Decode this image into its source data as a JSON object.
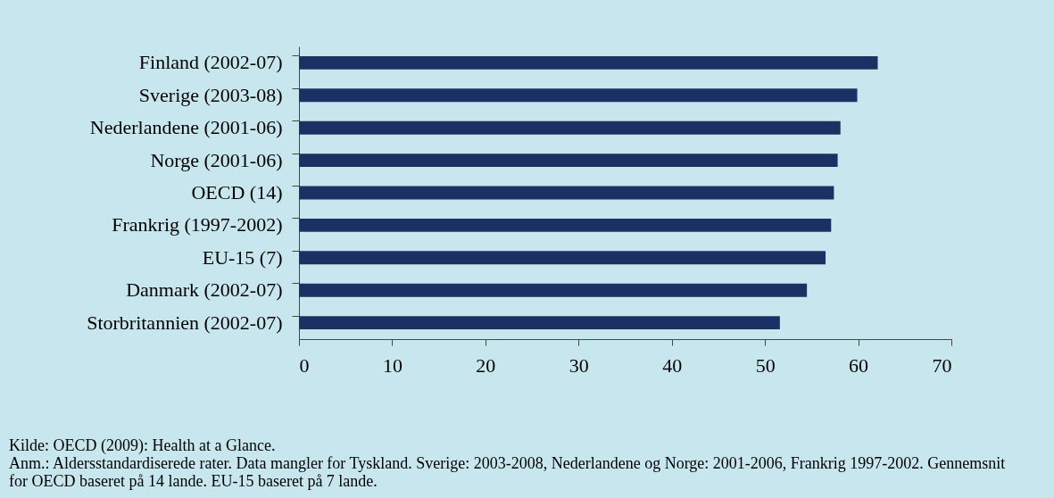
{
  "chart_data": {
    "type": "bar",
    "orientation": "horizontal",
    "categories": [
      "Finland (2002-07)",
      "Sverige (2003-08)",
      "Nederlandene (2001-06)",
      "Norge (2001-06)",
      "OECD (14)",
      "Frankrig (1997-2002)",
      "EU-15 (7)",
      "Danmark (2002-07)",
      "Storbritannien (2002-07)"
    ],
    "values": [
      62.1,
      59.9,
      58.1,
      57.8,
      57.4,
      57.1,
      56.5,
      54.5,
      51.6
    ],
    "color": "#1c3163",
    "xlim": [
      0,
      70
    ],
    "xticks": [
      0,
      10,
      20,
      30,
      40,
      50,
      60,
      70
    ],
    "grid": false,
    "annotations": [
      "Kilde: OECD (2009): Health at a Glance.",
      "Anm.: Aldersstandardiserede rater. Data mangler for Tyskland. Sverige: 2003-2008, Nederlandene og Norge: 2001-2006, Frankrig 1997-2002. Gennemsnit for OECD baseret på 14 lande. EU-15 baseret på 7 lande."
    ]
  }
}
